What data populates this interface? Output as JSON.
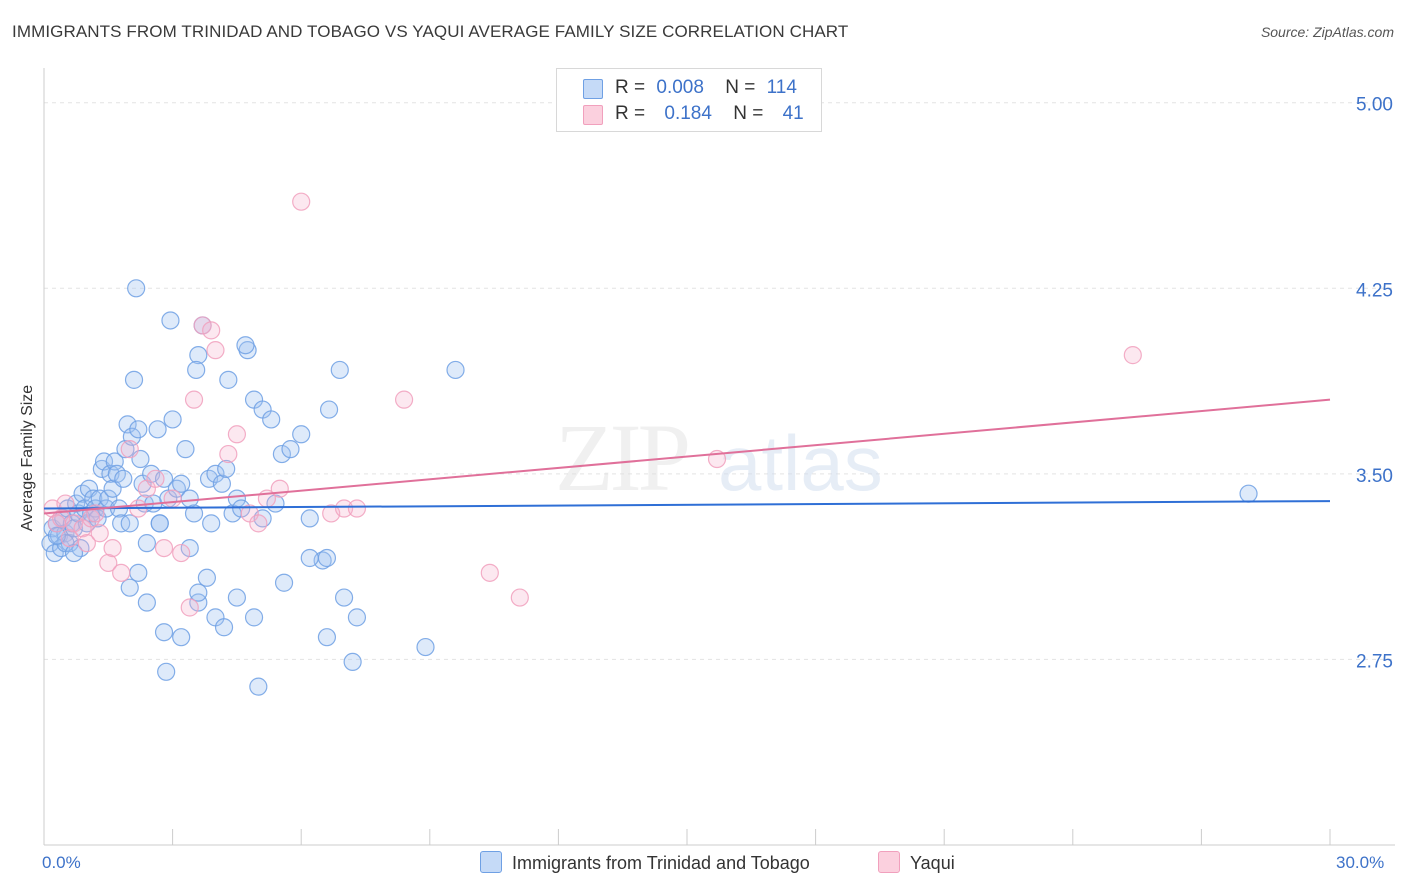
{
  "chart_data": {
    "type": "scatter",
    "title": "IMMIGRANTS FROM TRINIDAD AND TOBAGO VS YAQUI AVERAGE FAMILY SIZE CORRELATION CHART",
    "source": "Source: ZipAtlas.com",
    "ylabel": "Average Family Size",
    "xlabel": "",
    "xlim": [
      0,
      30
    ],
    "ylim": [
      2.0,
      5.1
    ],
    "x_tick_labels": [
      "0.0%",
      "30.0%"
    ],
    "y_ticks": [
      2.75,
      3.5,
      4.25,
      5.0
    ],
    "y_tick_labels": [
      "2.75",
      "3.50",
      "4.25",
      "5.00"
    ],
    "watermark": "ZIPatlas",
    "legend": {
      "series1": {
        "r_label": "R =",
        "r_value": "0.008",
        "n_label": "N =",
        "n_value": "114"
      },
      "series2": {
        "r_label": "R =",
        "r_value": "0.184",
        "n_label": "N =",
        "n_value": "41"
      }
    },
    "series": [
      {
        "name": "Immigrants from Trinidad and Tobago",
        "color": "#6fa0e4",
        "line_color": "#2f6fd6",
        "trend": {
          "x": [
            0,
            30
          ],
          "y": [
            3.36,
            3.39
          ]
        },
        "points": [
          [
            0.15,
            3.22
          ],
          [
            0.2,
            3.28
          ],
          [
            0.25,
            3.18
          ],
          [
            0.3,
            3.3
          ],
          [
            0.35,
            3.25
          ],
          [
            0.4,
            3.2
          ],
          [
            0.45,
            3.32
          ],
          [
            0.5,
            3.26
          ],
          [
            0.55,
            3.36
          ],
          [
            0.6,
            3.22
          ],
          [
            0.65,
            3.3
          ],
          [
            0.7,
            3.28
          ],
          [
            0.75,
            3.38
          ],
          [
            0.8,
            3.34
          ],
          [
            0.85,
            3.2
          ],
          [
            0.9,
            3.42
          ],
          [
            0.95,
            3.36
          ],
          [
            1.0,
            3.3
          ],
          [
            1.05,
            3.44
          ],
          [
            1.1,
            3.34
          ],
          [
            1.15,
            3.4
          ],
          [
            1.2,
            3.36
          ],
          [
            1.25,
            3.32
          ],
          [
            1.3,
            3.4
          ],
          [
            1.35,
            3.52
          ],
          [
            1.4,
            3.55
          ],
          [
            1.45,
            3.36
          ],
          [
            1.5,
            3.4
          ],
          [
            1.55,
            3.5
          ],
          [
            1.6,
            3.44
          ],
          [
            1.65,
            3.55
          ],
          [
            1.7,
            3.5
          ],
          [
            1.75,
            3.36
          ],
          [
            1.8,
            3.3
          ],
          [
            1.85,
            3.48
          ],
          [
            1.9,
            3.6
          ],
          [
            1.95,
            3.7
          ],
          [
            2.0,
            3.3
          ],
          [
            2.05,
            3.65
          ],
          [
            2.1,
            3.88
          ],
          [
            2.15,
            4.25
          ],
          [
            2.2,
            3.68
          ],
          [
            2.25,
            3.56
          ],
          [
            2.3,
            3.46
          ],
          [
            2.35,
            3.38
          ],
          [
            2.4,
            3.22
          ],
          [
            2.5,
            3.5
          ],
          [
            2.55,
            3.38
          ],
          [
            2.65,
            3.68
          ],
          [
            2.7,
            3.3
          ],
          [
            2.8,
            3.48
          ],
          [
            2.9,
            3.4
          ],
          [
            2.95,
            4.12
          ],
          [
            3.0,
            3.72
          ],
          [
            3.1,
            3.44
          ],
          [
            3.2,
            3.46
          ],
          [
            3.3,
            3.6
          ],
          [
            3.4,
            3.4
          ],
          [
            3.5,
            3.34
          ],
          [
            3.6,
            3.98
          ],
          [
            3.7,
            4.1
          ],
          [
            3.85,
            3.48
          ],
          [
            3.9,
            3.3
          ],
          [
            4.0,
            3.5
          ],
          [
            4.15,
            3.46
          ],
          [
            4.25,
            3.52
          ],
          [
            4.4,
            3.34
          ],
          [
            4.5,
            3.4
          ],
          [
            4.6,
            3.36
          ],
          [
            4.75,
            4.0
          ],
          [
            4.9,
            3.8
          ],
          [
            5.1,
            3.76
          ],
          [
            5.3,
            3.72
          ],
          [
            5.4,
            3.38
          ],
          [
            5.55,
            3.58
          ],
          [
            5.75,
            3.6
          ],
          [
            6.0,
            3.66
          ],
          [
            6.2,
            3.32
          ],
          [
            6.5,
            3.15
          ],
          [
            7.0,
            3.0
          ],
          [
            2.0,
            3.04
          ],
          [
            2.2,
            3.1
          ],
          [
            2.4,
            2.98
          ],
          [
            2.8,
            2.86
          ],
          [
            2.85,
            2.7
          ],
          [
            3.2,
            2.84
          ],
          [
            3.4,
            3.2
          ],
          [
            3.6,
            2.98
          ],
          [
            3.8,
            3.08
          ],
          [
            4.0,
            2.92
          ],
          [
            4.2,
            2.88
          ],
          [
            4.5,
            3.0
          ],
          [
            4.9,
            2.92
          ],
          [
            5.1,
            3.32
          ],
          [
            5.6,
            3.06
          ],
          [
            6.2,
            3.16
          ],
          [
            6.6,
            2.84
          ],
          [
            7.3,
            2.92
          ],
          [
            7.2,
            2.74
          ],
          [
            6.6,
            3.16
          ],
          [
            5.0,
            2.64
          ],
          [
            3.6,
            3.02
          ],
          [
            2.7,
            3.3
          ],
          [
            8.9,
            2.8
          ],
          [
            4.7,
            4.02
          ],
          [
            3.55,
            3.92
          ],
          [
            4.3,
            3.88
          ],
          [
            6.9,
            3.92
          ],
          [
            6.65,
            3.76
          ],
          [
            9.6,
            3.92
          ],
          [
            28.1,
            3.42
          ],
          [
            0.5,
            3.22
          ],
          [
            0.3,
            3.25
          ],
          [
            0.7,
            3.18
          ]
        ]
      },
      {
        "name": "Yaqui",
        "color": "#f1a0bd",
        "line_color": "#e0709a",
        "trend": {
          "x": [
            0,
            30
          ],
          "y": [
            3.34,
            3.8
          ]
        },
        "points": [
          [
            0.2,
            3.36
          ],
          [
            0.3,
            3.3
          ],
          [
            0.4,
            3.32
          ],
          [
            0.5,
            3.38
          ],
          [
            0.6,
            3.24
          ],
          [
            0.7,
            3.3
          ],
          [
            0.9,
            3.28
          ],
          [
            1.0,
            3.22
          ],
          [
            1.1,
            3.32
          ],
          [
            1.2,
            3.34
          ],
          [
            1.3,
            3.26
          ],
          [
            1.5,
            3.14
          ],
          [
            1.6,
            3.2
          ],
          [
            1.8,
            3.1
          ],
          [
            2.0,
            3.6
          ],
          [
            2.2,
            3.36
          ],
          [
            2.4,
            3.44
          ],
          [
            2.6,
            3.48
          ],
          [
            2.8,
            3.2
          ],
          [
            3.0,
            3.4
          ],
          [
            3.2,
            3.18
          ],
          [
            3.5,
            3.8
          ],
          [
            3.7,
            4.1
          ],
          [
            3.9,
            4.08
          ],
          [
            4.0,
            4.0
          ],
          [
            4.3,
            3.58
          ],
          [
            4.5,
            3.66
          ],
          [
            4.8,
            3.34
          ],
          [
            5.0,
            3.3
          ],
          [
            5.2,
            3.4
          ],
          [
            5.5,
            3.44
          ],
          [
            6.0,
            4.6
          ],
          [
            6.7,
            3.34
          ],
          [
            7.0,
            3.36
          ],
          [
            7.3,
            3.36
          ],
          [
            8.4,
            3.8
          ],
          [
            10.4,
            3.1
          ],
          [
            11.1,
            3.0
          ],
          [
            15.7,
            3.56
          ],
          [
            25.4,
            3.98
          ],
          [
            3.4,
            2.96
          ]
        ]
      }
    ]
  }
}
